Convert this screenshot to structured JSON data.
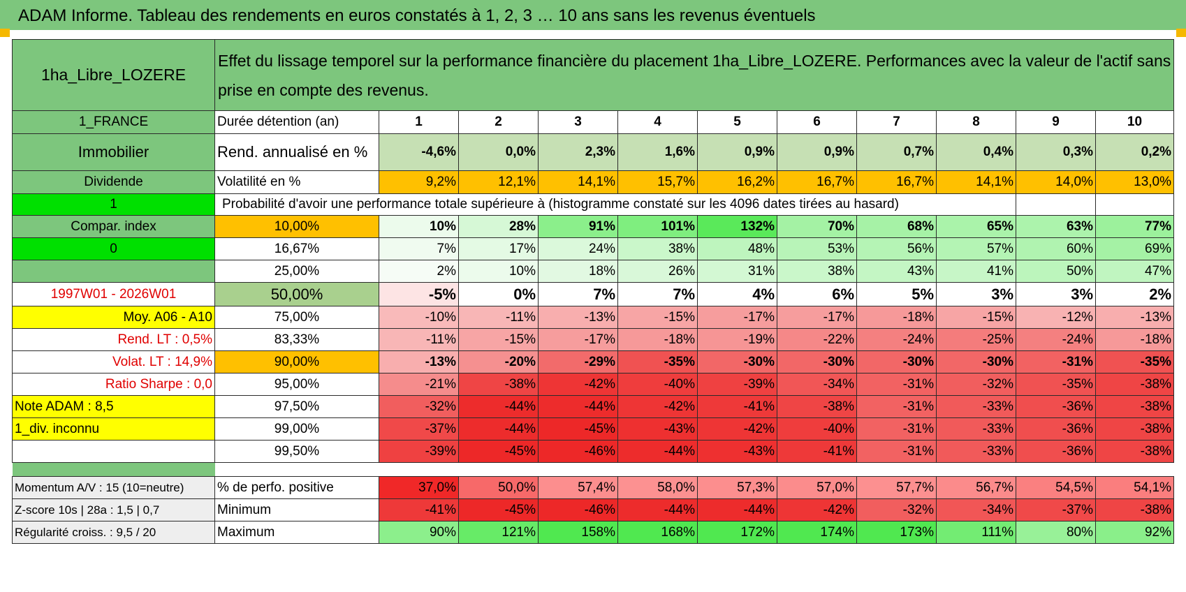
{
  "title": "ADAM Informe. Tableau des rendements en euros constatés à 1, 2, 3 … 10 ans sans les revenus éventuels",
  "asset": "1ha_Libre_LOZERE",
  "description": "Effet du lissage temporel sur la performance financière du placement 1ha_Libre_LOZERE. Performances avec la valeur de l'actif sans prise en compte des revenus.",
  "side": {
    "country": "1_FRANCE",
    "category": "Immobilier",
    "type": "Dividende",
    "flag1": "1",
    "compar": "Compar. index",
    "flag0": "0",
    "empty": "",
    "period": "1997W01 - 2026W01",
    "moy": "Moy. A06 - A10",
    "rend_lt": "Rend. LT :    0,5%",
    "volat_lt": "Volat. LT :    14,9%",
    "sharpe": "Ratio Sharpe :     0,0",
    "note": "Note ADAM : 8,5",
    "div": "1_div. inconnu",
    "blank": ""
  },
  "duration_label": "Durée détention (an)",
  "years": [
    "1",
    "2",
    "3",
    "4",
    "5",
    "6",
    "7",
    "8",
    "9",
    "10"
  ],
  "rend_label": "Rend. annualisé en %",
  "rend": [
    "-4,6%",
    "0,0%",
    "2,3%",
    "1,6%",
    "0,9%",
    "0,9%",
    "0,7%",
    "0,4%",
    "0,3%",
    "0,2%"
  ],
  "vol_label": "Volatilité en %",
  "vol": [
    "9,2%",
    "12,1%",
    "14,1%",
    "15,7%",
    "16,2%",
    "16,7%",
    "16,7%",
    "14,1%",
    "14,0%",
    "13,0%"
  ],
  "prob_title": "Probabilité d'avoir une performance totale supérieure à (histogramme constaté sur les 4096 dates tirées au hasard)",
  "prob_rows": [
    {
      "p": "10,00%",
      "v": [
        "10%",
        "28%",
        "91%",
        "101%",
        "132%",
        "70%",
        "68%",
        "65%",
        "63%",
        "77%"
      ]
    },
    {
      "p": "16,67%",
      "v": [
        "7%",
        "17%",
        "24%",
        "38%",
        "48%",
        "53%",
        "56%",
        "57%",
        "60%",
        "69%"
      ]
    },
    {
      "p": "25,00%",
      "v": [
        "2%",
        "10%",
        "18%",
        "26%",
        "31%",
        "38%",
        "43%",
        "41%",
        "50%",
        "47%"
      ]
    },
    {
      "p": "50,00%",
      "v": [
        "-5%",
        "0%",
        "7%",
        "7%",
        "4%",
        "6%",
        "5%",
        "3%",
        "3%",
        "2%"
      ]
    },
    {
      "p": "75,00%",
      "v": [
        "-10%",
        "-11%",
        "-13%",
        "-15%",
        "-17%",
        "-17%",
        "-18%",
        "-15%",
        "-12%",
        "-13%"
      ]
    },
    {
      "p": "83,33%",
      "v": [
        "-11%",
        "-15%",
        "-17%",
        "-18%",
        "-19%",
        "-22%",
        "-24%",
        "-25%",
        "-24%",
        "-18%"
      ]
    },
    {
      "p": "90,00%",
      "v": [
        "-13%",
        "-20%",
        "-29%",
        "-35%",
        "-30%",
        "-30%",
        "-30%",
        "-30%",
        "-31%",
        "-35%"
      ]
    },
    {
      "p": "95,00%",
      "v": [
        "-21%",
        "-38%",
        "-42%",
        "-40%",
        "-39%",
        "-34%",
        "-31%",
        "-32%",
        "-35%",
        "-38%"
      ]
    },
    {
      "p": "97,50%",
      "v": [
        "-32%",
        "-44%",
        "-44%",
        "-42%",
        "-41%",
        "-38%",
        "-31%",
        "-33%",
        "-36%",
        "-38%"
      ]
    },
    {
      "p": "99,00%",
      "v": [
        "-37%",
        "-44%",
        "-45%",
        "-43%",
        "-42%",
        "-40%",
        "-31%",
        "-33%",
        "-36%",
        "-38%"
      ]
    },
    {
      "p": "99,50%",
      "v": [
        "-39%",
        "-45%",
        "-46%",
        "-44%",
        "-43%",
        "-41%",
        "-31%",
        "-33%",
        "-36%",
        "-38%"
      ]
    }
  ],
  "bottom": [
    {
      "side": "Momentum A/V : 15 (10=neutre)",
      "label": "% de perfo. positive",
      "v": [
        "37,0%",
        "50,0%",
        "57,4%",
        "58,0%",
        "57,3%",
        "57,0%",
        "57,7%",
        "56,7%",
        "54,5%",
        "54,1%"
      ]
    },
    {
      "side": "Z-score 10s | 28a : 1,5 | 0,7",
      "label": "Minimum",
      "v": [
        "-41%",
        "-45%",
        "-46%",
        "-44%",
        "-44%",
        "-42%",
        "-32%",
        "-34%",
        "-37%",
        "-38%"
      ]
    },
    {
      "side": "Régularité croiss. : 9,5 / 20",
      "label": "Maximum",
      "v": [
        "90%",
        "121%",
        "158%",
        "168%",
        "172%",
        "174%",
        "173%",
        "111%",
        "80%",
        "92%"
      ]
    }
  ],
  "colors": {
    "header_green": "#7dc67d",
    "bright_green": "#00e000",
    "orange": "#ffc000",
    "yellow": "#ffff00",
    "rend_bg": "#c6e0b4",
    "median_label_bg": "#a9d08e",
    "red_text": "#e00000"
  }
}
